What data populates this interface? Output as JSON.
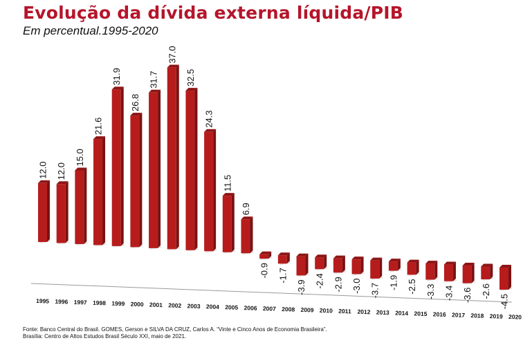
{
  "chart_data": {
    "type": "bar",
    "title": "Evolução da dívida externa líquida/PIB",
    "subtitle": "Em percentual.1995-2020",
    "xlabel": "",
    "ylabel": "",
    "categories": [
      "1995",
      "1996",
      "1997",
      "1998",
      "1999",
      "2000",
      "2001",
      "2002",
      "2003",
      "2004",
      "2005",
      "2006",
      "2007",
      "2008",
      "2009",
      "2010",
      "2011",
      "2012",
      "2013",
      "2014",
      "2015",
      "2016",
      "2017",
      "2018",
      "2019",
      "2020"
    ],
    "values": [
      12.0,
      12.0,
      15.0,
      21.6,
      31.9,
      26.8,
      31.7,
      37.0,
      32.5,
      24.3,
      11.5,
      6.9,
      -0.9,
      -1.7,
      -3.9,
      -2.4,
      -2.9,
      -3.0,
      -3.7,
      -1.9,
      -2.5,
      -3.3,
      -3.4,
      -3.6,
      -2.6,
      -4.5
    ],
    "labels": [
      "12.0",
      "12.0",
      "15.0",
      "21.6",
      "31.9",
      "26.8",
      "31.7",
      "37.0",
      "32.5",
      "24.3",
      "11.5",
      "6.9",
      "-0.9",
      "-1.7",
      "-3.9",
      "-2.4",
      "-2.9",
      "-3.0",
      "-3.7",
      "-1.9",
      "-2.5",
      "-3.3",
      "-3.4",
      "-3.6",
      "-2.6",
      "-4.5"
    ],
    "ylim": [
      -5,
      38
    ],
    "grid": false,
    "legend": "none",
    "bar_color": "#b71c1c",
    "bar_side_color": "#7a1212",
    "bar_top_color": "#8e1515"
  },
  "source": {
    "line1": "Fonte: Banco Central do Brasil. GOMES, Gerson e SILVA DA CRUZ, Carlos A. “Vinte e Cinco Anos de Economia Brasileira”.",
    "line2": "Brasília: Centro de Altos Estudos Brasil Século XXI, maio de 2021."
  }
}
